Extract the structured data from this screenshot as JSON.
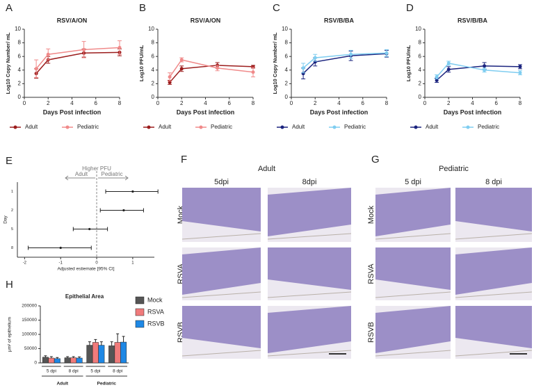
{
  "chart_data": [
    {
      "type": "line",
      "panel": "A",
      "title": "RSV/A/ON",
      "x_label": "Days Post infection",
      "y_label": "Log10 Copy Number/ mL",
      "x": [
        1,
        2,
        5,
        8
      ],
      "xlim": [
        0,
        8
      ],
      "xticks": [
        0,
        2,
        4,
        6,
        8
      ],
      "ylim": [
        0,
        10
      ],
      "yticks": [
        0,
        2,
        4,
        6,
        8,
        10
      ],
      "series": [
        {
          "name": "Adult",
          "color": "#9b1c1c",
          "values": [
            3.5,
            5.5,
            6.5,
            6.6
          ],
          "errors": [
            0.7,
            0.5,
            0.6,
            0.5
          ]
        },
        {
          "name": "Pediatric",
          "color": "#f08a8a",
          "values": [
            4.2,
            6.3,
            7.0,
            7.3
          ],
          "errors": [
            1.3,
            0.8,
            1.2,
            1.0
          ]
        }
      ]
    },
    {
      "type": "line",
      "panel": "B",
      "title": "RSV/A/ON",
      "x_label": "Days Post infection",
      "y_label": "Log10 PFU/mL",
      "x": [
        1,
        2,
        5,
        8
      ],
      "xlim": [
        0,
        8
      ],
      "xticks": [
        0,
        2,
        4,
        6,
        8
      ],
      "ylim": [
        0,
        10
      ],
      "yticks": [
        0,
        2,
        4,
        6,
        8,
        10
      ],
      "series": [
        {
          "name": "Adult",
          "color": "#9b1c1c",
          "values": [
            2.2,
            4.2,
            4.7,
            4.5
          ],
          "errors": [
            0.3,
            0.4,
            0.4,
            0.2
          ]
        },
        {
          "name": "Pediatric",
          "color": "#f08a8a",
          "values": [
            3.0,
            5.5,
            4.3,
            3.7
          ],
          "errors": [
            0.6,
            0.3,
            0.4,
            0.7
          ]
        }
      ]
    },
    {
      "type": "line",
      "panel": "C",
      "title": "RSV/B/BA",
      "x_label": "Days Post infection",
      "y_label": "Log10 Copy Number/ mL",
      "x": [
        1,
        2,
        5,
        8
      ],
      "xlim": [
        0,
        8
      ],
      "xticks": [
        0,
        2,
        4,
        6,
        8
      ],
      "ylim": [
        0,
        10
      ],
      "yticks": [
        0,
        2,
        4,
        6,
        8,
        10
      ],
      "series": [
        {
          "name": "Adult",
          "color": "#1a237e",
          "values": [
            3.5,
            5.2,
            6.1,
            6.4
          ],
          "errors": [
            0.8,
            0.6,
            0.7,
            0.5
          ]
        },
        {
          "name": "Pediatric",
          "color": "#7fcdf0",
          "values": [
            4.3,
            5.8,
            6.3,
            6.5
          ],
          "errors": [
            0.7,
            0.5,
            0.6,
            0.5
          ]
        }
      ]
    },
    {
      "type": "line",
      "panel": "D",
      "title": "RSV/B/BA",
      "x_label": "Days Post infection",
      "y_label": "Log10 PFU/mL",
      "x": [
        1,
        2,
        5,
        8
      ],
      "xlim": [
        0,
        8
      ],
      "xticks": [
        0,
        2,
        4,
        6,
        8
      ],
      "ylim": [
        0,
        10
      ],
      "yticks": [
        0,
        2,
        4,
        6,
        8,
        10
      ],
      "series": [
        {
          "name": "Adult",
          "color": "#1a237e",
          "values": [
            2.5,
            4.1,
            4.6,
            4.5
          ],
          "errors": [
            0.3,
            0.4,
            0.5,
            0.3
          ]
        },
        {
          "name": "Pediatric",
          "color": "#7fcdf0",
          "values": [
            3.0,
            5.0,
            4.0,
            3.6
          ],
          "errors": [
            0.3,
            0.3,
            0.3,
            0.3
          ]
        }
      ]
    },
    {
      "type": "forest",
      "panel": "E",
      "annotation": "Higher PFU",
      "direction_labels": [
        "Adult",
        "Pediatric"
      ],
      "x_label": "Adjusted estiemate [95% CI]",
      "y_label": "Day",
      "categories": [
        "1",
        "2",
        "5",
        "8"
      ],
      "values": [
        1.0,
        0.75,
        -0.2,
        -1.0
      ],
      "ci_low": [
        0.25,
        0.1,
        -0.65,
        -1.9
      ],
      "ci_high": [
        1.7,
        1.3,
        0.3,
        -0.15
      ],
      "xlim": [
        -2.2,
        1.6
      ],
      "xticks": [
        -2,
        -1,
        0,
        1
      ],
      "reference_line": 0
    },
    {
      "type": "grouped_bar",
      "panel": "H",
      "title": "Epithelial Area",
      "y_label": "μm² of epithelium",
      "categories": [
        "5 dpi",
        "8 dpi",
        "5 dpi",
        "8 dpi"
      ],
      "groups": [
        "Adult",
        "Pediatric"
      ],
      "ylim": [
        0,
        200000
      ],
      "yticks": [
        0,
        50000,
        100000,
        150000,
        200000
      ],
      "series": [
        {
          "name": "Mock",
          "color": "#555555",
          "values": [
            20000,
            18000,
            62000,
            60000
          ],
          "errors": [
            5000,
            4000,
            12000,
            14000
          ]
        },
        {
          "name": "RSVA",
          "color": "#f07b7b",
          "values": [
            17000,
            18000,
            72000,
            72000
          ],
          "errors": [
            5000,
            4000,
            10000,
            30000
          ]
        },
        {
          "name": "RSVB",
          "color": "#1e88e5",
          "values": [
            15000,
            17000,
            62000,
            73000
          ],
          "errors": [
            4000,
            4000,
            12000,
            20000
          ]
        }
      ]
    }
  ],
  "histology": [
    {
      "panel": "F",
      "title": "Adult",
      "columns": [
        "5dpi",
        "8dpi"
      ],
      "rows": [
        "Mock",
        "RSVA",
        "RSVB"
      ]
    },
    {
      "panel": "G",
      "title": "Pediatric",
      "columns": [
        "5 dpi",
        "8 dpi"
      ],
      "rows": [
        "Mock",
        "RSVA",
        "RSVB"
      ]
    }
  ]
}
